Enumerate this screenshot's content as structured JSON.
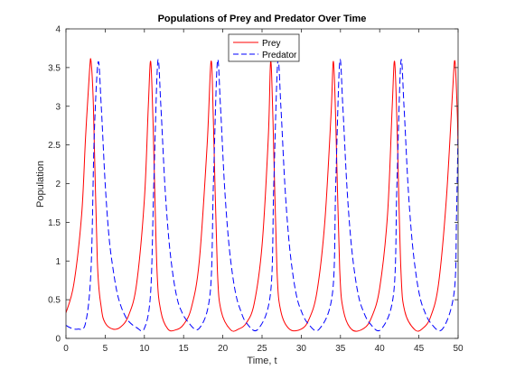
{
  "chart_data": {
    "type": "line",
    "title": "Populations of Prey and Predator Over Time",
    "xlabel": "Time, t",
    "ylabel": "Population",
    "xlim": [
      0,
      50
    ],
    "ylim": [
      0,
      4
    ],
    "xticks": [
      "0",
      "5",
      "10",
      "15",
      "20",
      "25",
      "30",
      "35",
      "40",
      "45",
      "50"
    ],
    "yticks": [
      "0",
      "0.5",
      "1",
      "1.5",
      "2",
      "2.5",
      "3",
      "3.5",
      "4"
    ],
    "grid": false,
    "legend_position": "top-center",
    "series": [
      {
        "name": "Prey",
        "color": "#ff0000",
        "style": "solid",
        "peak_times": [
          3.2,
          10.8,
          18.5,
          26.1,
          34.1,
          41.9,
          49.6
        ],
        "peak_value": 3.58,
        "trough_value": 0.1,
        "x": [
          0,
          1,
          2,
          2.5,
          3,
          3.2,
          3.5,
          4,
          4.5,
          5,
          6,
          7,
          8,
          9,
          10,
          10.5,
          10.8,
          11.1,
          11.6,
          12.1,
          13,
          14,
          15,
          16,
          17,
          18,
          18.5,
          18.8,
          19.3,
          19.8,
          21,
          22,
          23,
          24,
          25,
          25.8,
          26.1,
          26.4,
          26.9,
          27.4,
          28.5,
          30,
          31,
          32,
          33,
          33.8,
          34.1,
          34.4,
          34.9,
          35.4,
          36.5,
          38,
          39,
          40,
          41,
          41.6,
          41.9,
          42.2,
          42.7,
          43.2,
          44.5,
          45.5,
          46.5,
          47.5,
          48.5,
          49.3,
          49.6,
          49.9,
          50
        ],
        "y": [
          0.33,
          0.7,
          1.6,
          2.6,
          3.45,
          3.58,
          3.0,
          1.0,
          0.4,
          0.2,
          0.12,
          0.15,
          0.3,
          0.7,
          1.8,
          3.0,
          3.58,
          2.8,
          0.9,
          0.35,
          0.12,
          0.11,
          0.18,
          0.4,
          1.0,
          2.5,
          3.58,
          2.8,
          0.9,
          0.35,
          0.11,
          0.12,
          0.2,
          0.45,
          1.2,
          2.6,
          3.58,
          2.8,
          0.9,
          0.35,
          0.12,
          0.12,
          0.25,
          0.6,
          1.5,
          2.9,
          3.58,
          2.8,
          0.9,
          0.35,
          0.11,
          0.13,
          0.28,
          0.65,
          1.6,
          3.0,
          3.58,
          2.8,
          0.9,
          0.35,
          0.11,
          0.13,
          0.28,
          0.7,
          1.8,
          3.2,
          3.58,
          2.9,
          2.4
        ]
      },
      {
        "name": "Predator",
        "color": "#0000ff",
        "style": "dashed",
        "peak_times": [
          4.1,
          11.7,
          19.3,
          27.0,
          34.9,
          42.7,
          50.3
        ],
        "peak_value": 3.57,
        "trough_value": 0.12,
        "x": [
          0,
          0.5,
          1.5,
          2.5,
          3.2,
          3.6,
          4.1,
          4.5,
          5,
          5.5,
          6,
          6.5,
          7,
          7.5,
          8,
          9,
          10,
          10.8,
          11.2,
          11.7,
          12.1,
          12.6,
          13.1,
          13.6,
          14.1,
          14.6,
          15.5,
          17,
          18.4,
          18.8,
          19.3,
          19.7,
          20.2,
          20.7,
          21.2,
          21.7,
          22.2,
          23,
          24.5,
          26.1,
          26.5,
          27.0,
          27.4,
          27.9,
          28.4,
          28.9,
          29.4,
          29.9,
          30.8,
          32.3,
          34.0,
          34.4,
          34.9,
          35.3,
          35.8,
          36.3,
          36.8,
          37.3,
          37.8,
          38.7,
          40.2,
          41.8,
          42.2,
          42.7,
          43.1,
          43.6,
          44.1,
          44.6,
          45.1,
          45.6,
          46.5,
          48,
          49.5,
          49.8,
          50
        ],
        "y": [
          0.17,
          0.14,
          0.12,
          0.2,
          0.9,
          2.6,
          3.57,
          3.0,
          2.0,
          1.3,
          0.9,
          0.6,
          0.42,
          0.3,
          0.22,
          0.14,
          0.13,
          0.6,
          2.0,
          3.57,
          3.0,
          2.0,
          1.3,
          0.85,
          0.55,
          0.38,
          0.22,
          0.13,
          0.6,
          2.0,
          3.57,
          3.0,
          2.0,
          1.3,
          0.85,
          0.55,
          0.38,
          0.2,
          0.12,
          0.6,
          2.0,
          3.57,
          3.0,
          2.0,
          1.3,
          0.85,
          0.55,
          0.38,
          0.2,
          0.12,
          0.6,
          2.0,
          3.57,
          3.0,
          2.0,
          1.3,
          0.85,
          0.55,
          0.38,
          0.2,
          0.12,
          0.6,
          2.0,
          3.57,
          3.0,
          2.0,
          1.3,
          0.85,
          0.55,
          0.38,
          0.2,
          0.12,
          0.6,
          1.6,
          2.7
        ]
      }
    ]
  }
}
